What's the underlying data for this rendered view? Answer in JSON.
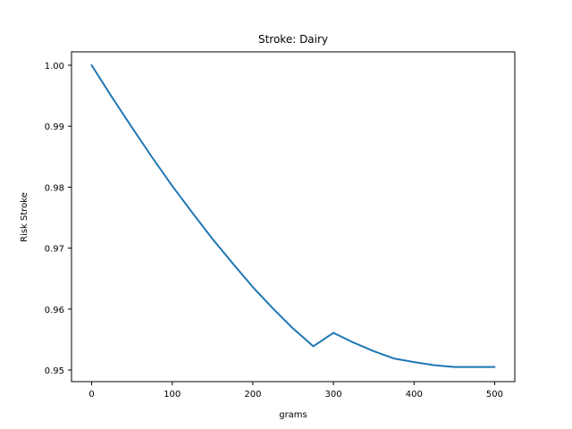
{
  "chart_data": {
    "type": "line",
    "title": "Stroke: Dairy",
    "xlabel": "grams",
    "ylabel": "Risk Stroke",
    "xlim": [
      -25,
      525
    ],
    "ylim": [
      0.9481,
      1.0022
    ],
    "xticks": [
      0,
      100,
      200,
      300,
      400,
      500
    ],
    "yticks": [
      0.95,
      0.96,
      0.97,
      0.98,
      0.99,
      1.0
    ],
    "ytick_labels": [
      "0.95",
      "0.96",
      "0.97",
      "0.98",
      "0.99",
      "1.00"
    ],
    "grid": false,
    "series": [
      {
        "color": "#1f77b4",
        "x": [
          0,
          25,
          50,
          75,
          100,
          125,
          150,
          175,
          200,
          225,
          250,
          275,
          300,
          325,
          350,
          375,
          400,
          425,
          450,
          475,
          500
        ],
        "y": [
          1.0,
          0.9948,
          0.9898,
          0.9849,
          0.9802,
          0.9758,
          0.9715,
          0.9675,
          0.9636,
          0.9601,
          0.9568,
          0.9539,
          0.9561,
          0.9545,
          0.9531,
          0.9519,
          0.9513,
          0.9508,
          0.9505,
          0.9505,
          0.9505
        ]
      }
    ]
  }
}
